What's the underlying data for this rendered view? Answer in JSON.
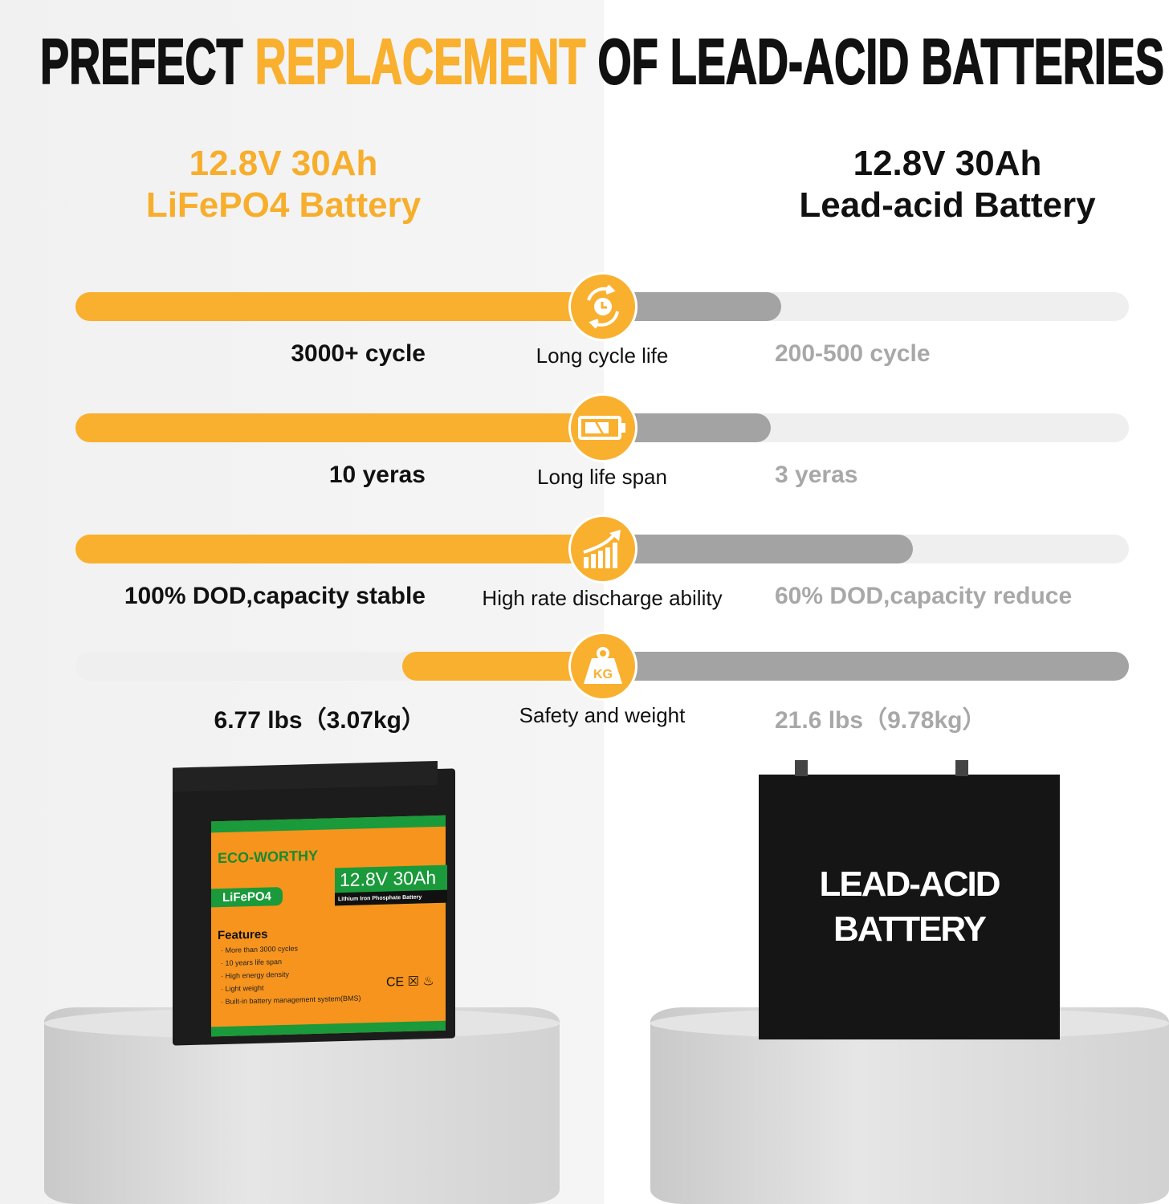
{
  "title": {
    "part1": "PREFECT ",
    "highlight": "REPLACEMENT",
    "part2": " OF LEAD-ACID BATTERIES"
  },
  "colors": {
    "accent": "#f9b02f",
    "lead_bar": "#a3a3a3",
    "track": "#efefef",
    "muted_text": "#a8a8a8"
  },
  "left_heading": {
    "line1": "12.8V 30Ah",
    "line2": "LiFePO4 Battery"
  },
  "right_heading": {
    "line1": "12.8V 30Ah",
    "line2": "Lead-acid Battery"
  },
  "rows": [
    {
      "icon": "cycle-clock-icon",
      "label": "Long cycle life",
      "lifepo4": "3000+ cycle",
      "lead_acid": "200-500 cycle",
      "lifepo4_level": 1.0,
      "lead_acid_level": 0.34
    },
    {
      "icon": "battery-icon",
      "label": "Long life span",
      "lifepo4": "10 yeras",
      "lead_acid": "3 yeras",
      "lifepo4_level": 1.0,
      "lead_acid_level": 0.32
    },
    {
      "icon": "growth-chart-icon",
      "label": "High rate discharge ability",
      "lifepo4": "100% DOD,capacity stable",
      "lead_acid": "60% DOD,capacity reduce",
      "lifepo4_level": 1.0,
      "lead_acid_level": 0.59
    },
    {
      "icon": "weight-kg-icon",
      "icon_text": "KG",
      "label": "Safety and weight",
      "lifepo4": "6.77 lbs（3.07kg）",
      "lead_acid": "21.6 lbs（9.78kg）",
      "lifepo4_level": 0.38,
      "lead_acid_level": 1.0
    }
  ],
  "lifepo4_battery": {
    "brand": "ECO-WORTHY",
    "chemistry": "LiFePO4",
    "rating": "12.8V 30Ah",
    "subtitle": "Lithium Iron Phosphate Battery",
    "features_title": "Features",
    "features": [
      "· More than 3000 cycles",
      "· 10 years life span",
      "· High energy density",
      "· Light weight",
      "· Built-in battery management system(BMS)"
    ],
    "certs": "CE ☒ ♨"
  },
  "lead_acid_battery": {
    "line1": "LEAD-ACID",
    "line2": "BATTERY"
  }
}
